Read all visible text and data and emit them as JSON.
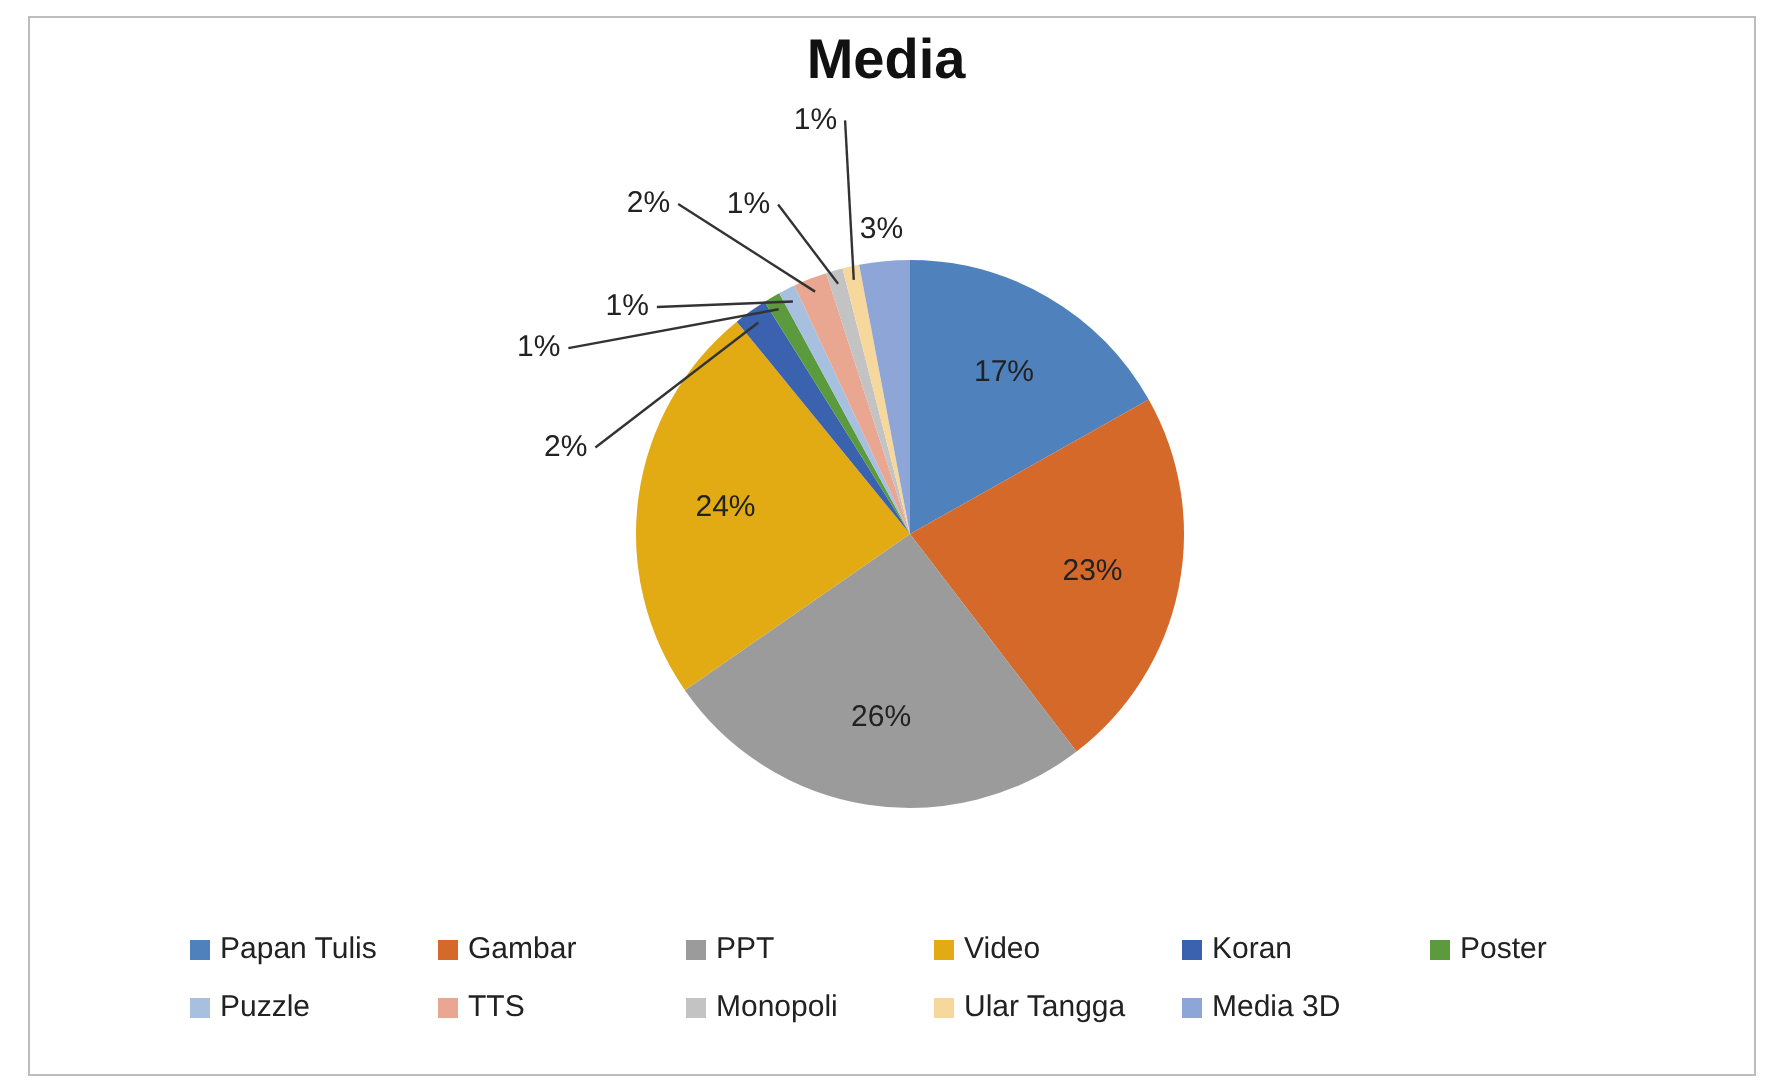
{
  "chart_data": {
    "type": "pie",
    "title": "Media",
    "categories": [
      "Papan Tulis",
      "Gambar",
      "PPT",
      "Video",
      "Koran",
      "Poster",
      "Puzzle",
      "TTS",
      "Monopoli",
      "Ular Tangga",
      "Media 3D"
    ],
    "values": [
      17,
      23,
      26,
      24,
      2,
      1,
      1,
      2,
      1,
      1,
      3
    ],
    "colors": [
      "#4f81bd",
      "#d4692a",
      "#9b9b9b",
      "#e2ab14",
      "#3a62ae",
      "#5b9a3d",
      "#a7c0e0",
      "#e9a690",
      "#c3c3c3",
      "#f6d89c",
      "#8ea5d8"
    ],
    "value_labels": [
      "17%",
      "23%",
      "26%",
      "24%",
      "2%",
      "1%",
      "1%",
      "2%",
      "1%",
      "1%",
      "3%"
    ],
    "legend": "bottom"
  }
}
